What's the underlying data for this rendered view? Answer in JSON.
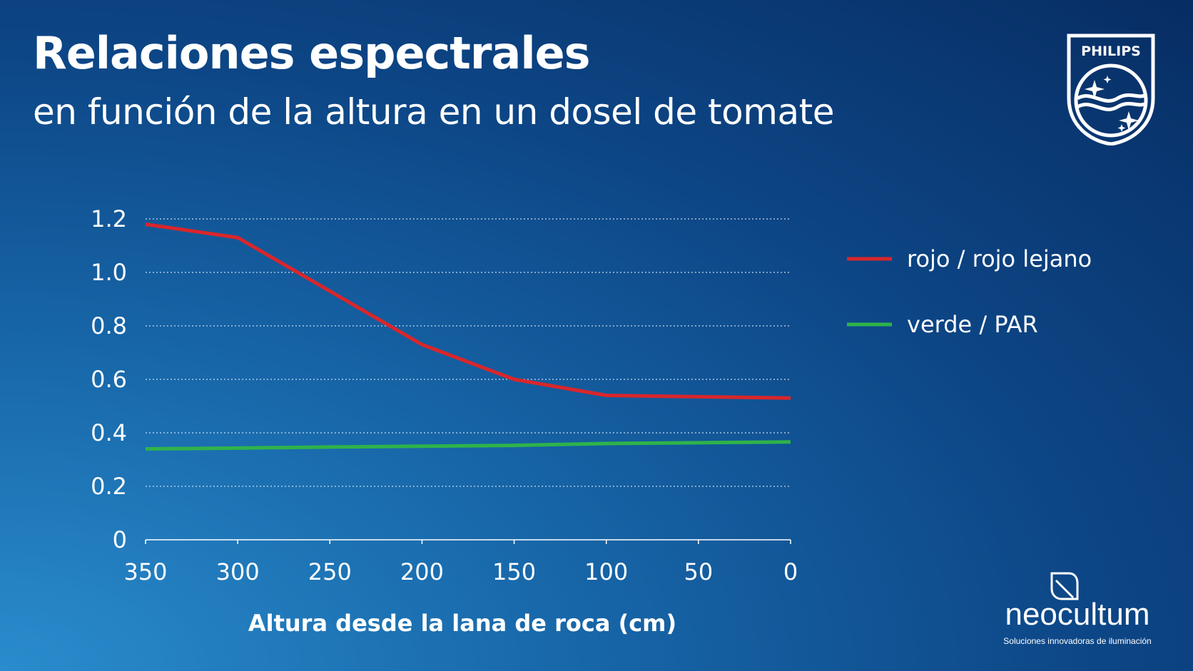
{
  "title": "Relaciones espectrales",
  "subtitle": "en función de la altura en un dosel de tomate",
  "brand": {
    "logo_text": "PHILIPS",
    "partner_name": "neocultum",
    "partner_tagline": "Soluciones innovadoras de iluminación"
  },
  "chart_data": {
    "type": "line",
    "xlabel": "Altura desde la lana de roca (cm)",
    "ylabel": "",
    "x": [
      350,
      300,
      250,
      200,
      150,
      100,
      50,
      0
    ],
    "x_tick_labels": [
      "350",
      "300",
      "250",
      "200",
      "150",
      "100",
      "50",
      "0"
    ],
    "y_tick_labels": [
      "1.2",
      "1.0",
      "0.8",
      "0.6",
      "0.4",
      "0.2",
      "0"
    ],
    "y_ticks": [
      1.2,
      1.0,
      0.8,
      0.6,
      0.4,
      0.2,
      0
    ],
    "xlim": [
      350,
      0
    ],
    "ylim": [
      0,
      1.2
    ],
    "x_reversed": true,
    "grid": "horizontal dotted",
    "legend_position": "right",
    "series": [
      {
        "name": "rojo / rojo lejano",
        "color": "#d9262b",
        "x": [
          350,
          300,
          250,
          200,
          150,
          100,
          50,
          0
        ],
        "values": [
          1.18,
          1.13,
          0.93,
          0.73,
          0.6,
          0.54,
          0.535,
          0.53
        ]
      },
      {
        "name": "verde / PAR",
        "color": "#2fb34a",
        "x": [
          350,
          300,
          250,
          200,
          150,
          100,
          50,
          0
        ],
        "values": [
          0.34,
          0.343,
          0.347,
          0.35,
          0.353,
          0.36,
          0.363,
          0.366
        ]
      }
    ]
  }
}
